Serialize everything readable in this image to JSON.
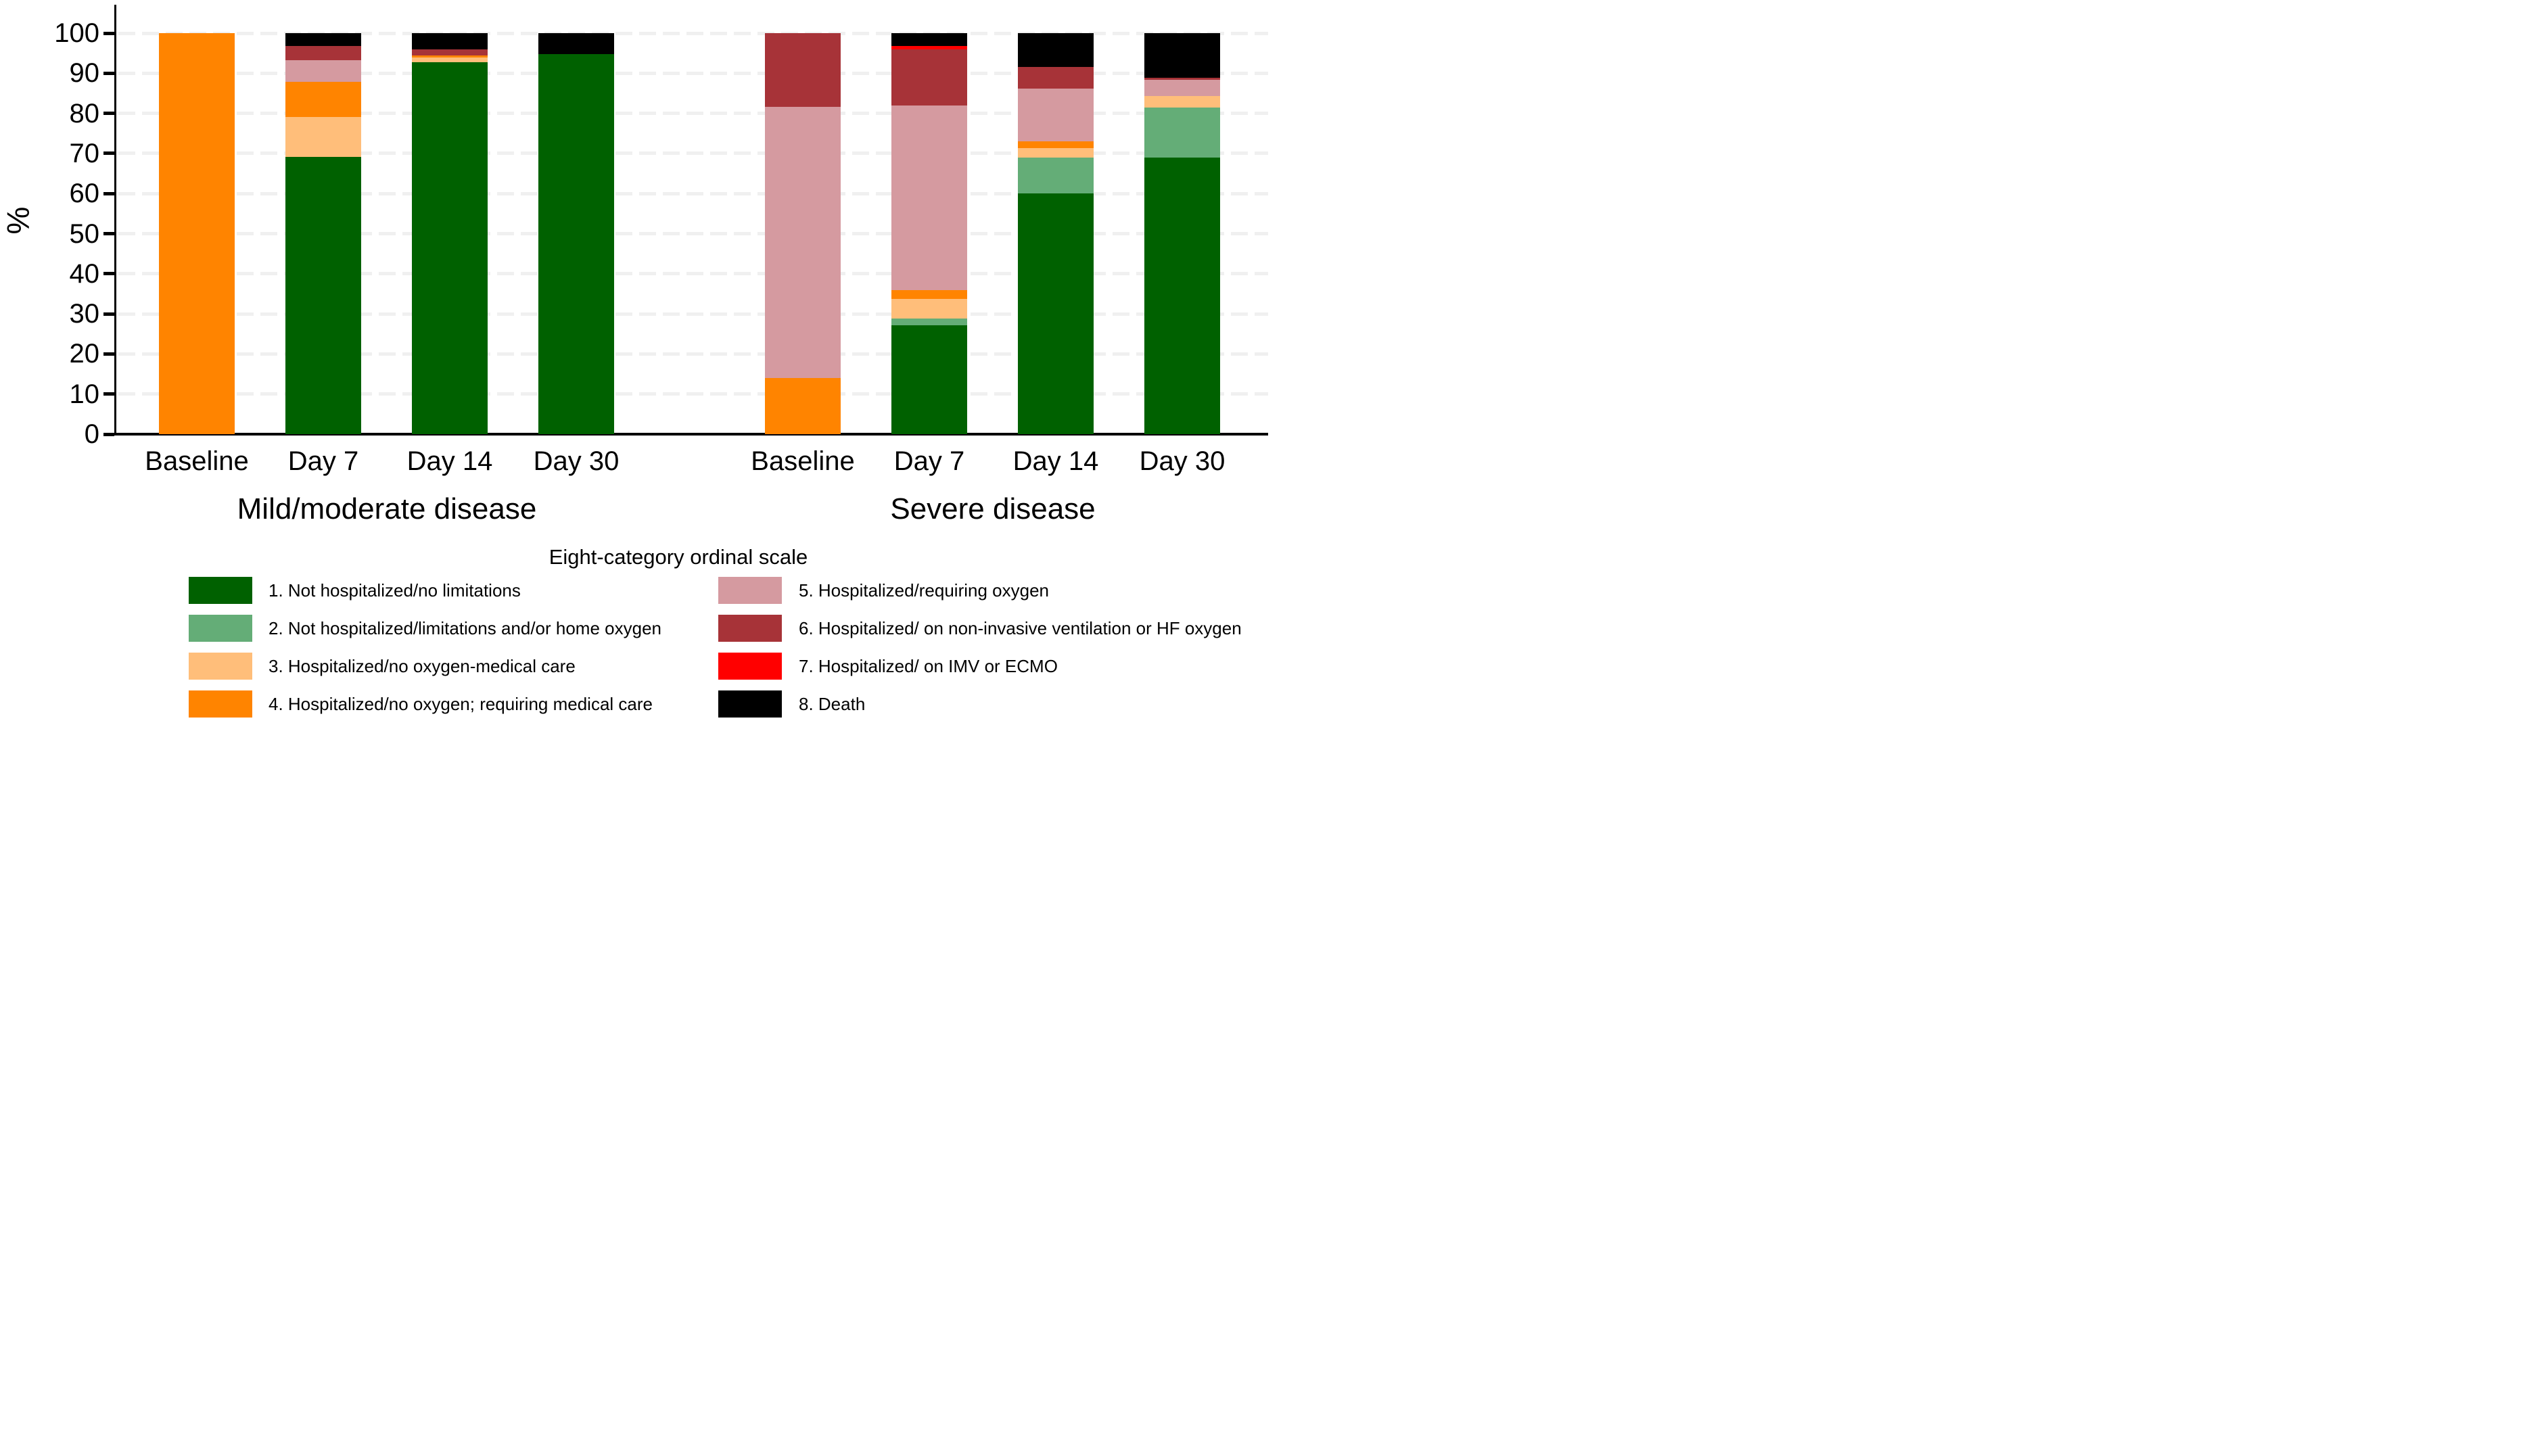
{
  "chart_data": {
    "type": "bar",
    "stacked": true,
    "unit": "percent",
    "ylabel": "%",
    "ylim": [
      0,
      100
    ],
    "yticks": [
      "0",
      "10",
      "20",
      "30",
      "40",
      "50",
      "60",
      "70",
      "80",
      "90",
      "100"
    ],
    "grid": "horizontal dashed light-gray at every 10%",
    "legend_title": "Eight-category ordinal scale",
    "legend_position": "bottom, two columns",
    "categories": [
      "Baseline",
      "Day 7",
      "Day 14",
      "Day 30"
    ],
    "groups": [
      {
        "key": "mild_moderate",
        "label": "Mild/moderate disease"
      },
      {
        "key": "severe",
        "label": "Severe disease"
      }
    ],
    "stack_order": "series listed bottom-to-top",
    "series": [
      {
        "label": "1. Not hospitalized/no limitations",
        "color": "#006100",
        "mild_moderate": [
          0,
          69.2,
          92.7,
          94.7
        ],
        "severe": [
          0,
          27.2,
          60.1,
          68.9
        ]
      },
      {
        "label": "2. Not hospitalized/limitations and/or home oxygen",
        "color": "#64ad77",
        "mild_moderate": [
          0,
          0,
          0,
          0
        ],
        "severe": [
          0,
          1.7,
          8.9,
          12.5
        ]
      },
      {
        "label": "3. Hospitalized/no oxygen-medical care",
        "color": "#ffbe7a",
        "mild_moderate": [
          0,
          9.9,
          1.2,
          0
        ],
        "severe": [
          0,
          4.9,
          2.4,
          2.9
        ]
      },
      {
        "label": "4. Hospitalized/no oxygen; requiring medical care",
        "color": "#ff8400",
        "mild_moderate": [
          100,
          8.8,
          0.6,
          0
        ],
        "severe": [
          14,
          2.1,
          1.6,
          0
        ]
      },
      {
        "label": "5. Hospitalized/requiring oxygen",
        "color": "#d59aa0",
        "mild_moderate": [
          0,
          5.4,
          0,
          0
        ],
        "severe": [
          67.7,
          46.0,
          13.1,
          4.1
        ]
      },
      {
        "label": "6. Hospitalized/ on non-invasive ventilation or HF oxygen",
        "color": "#a73338",
        "mild_moderate": [
          0,
          3.5,
          1.4,
          0
        ],
        "severe": [
          18.3,
          14.1,
          5.4,
          0.4
        ]
      },
      {
        "label": "7. Hospitalized/ on IMV or ECMO",
        "color": "#ff0000",
        "mild_moderate": [
          0,
          0,
          0,
          0
        ],
        "severe": [
          0,
          0.8,
          0,
          0
        ]
      },
      {
        "label": "8. Death",
        "color": "#000000",
        "mild_moderate": [
          0,
          3.2,
          4.1,
          5.3
        ],
        "severe": [
          0,
          3.2,
          8.5,
          11.2
        ]
      }
    ]
  }
}
